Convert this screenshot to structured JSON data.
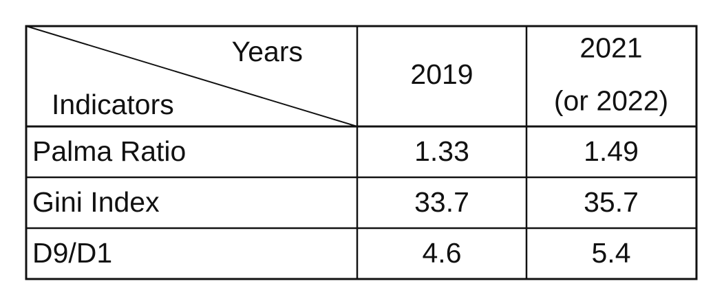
{
  "table": {
    "corner": {
      "columns_label": "Years",
      "rows_label": "Indicators"
    },
    "columns": [
      [
        "2019"
      ],
      [
        "2021",
        "(or 2022)"
      ]
    ],
    "rows": [
      [
        "Palma Ratio",
        "1.33",
        "1.49"
      ],
      [
        "Gini Index",
        "33.7",
        "35.7"
      ],
      [
        "D9/D1",
        "4.6",
        "5.4"
      ]
    ]
  }
}
